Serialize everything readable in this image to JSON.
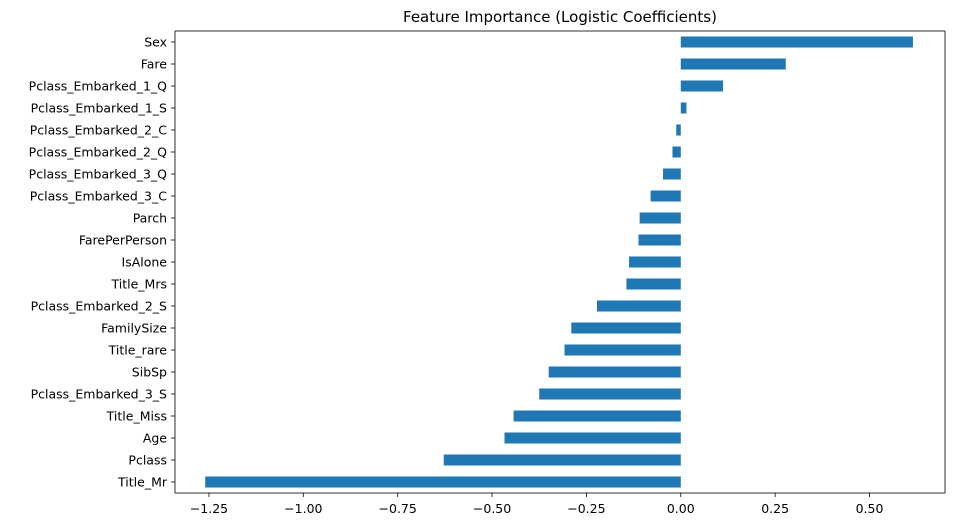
{
  "chart_data": {
    "type": "bar",
    "orientation": "horizontal",
    "title": "Feature Importance (Logistic Coefficients)",
    "xlabel": "",
    "ylabel": "",
    "xlim": [
      -1.34,
      0.7
    ],
    "xticks": [
      -1.25,
      -1.0,
      -0.75,
      -0.5,
      -0.25,
      0.0,
      0.25,
      0.5
    ],
    "xtick_labels": [
      "−1.25",
      "−1.00",
      "−0.75",
      "−0.50",
      "−0.25",
      "0.00",
      "0.25",
      "0.50"
    ],
    "grid": false,
    "bar_color": "#1f77b4",
    "categories": [
      "Sex",
      "Fare",
      "Pclass_Embarked_1_Q",
      "Pclass_Embarked_1_S",
      "Pclass_Embarked_2_C",
      "Pclass_Embarked_2_Q",
      "Pclass_Embarked_3_Q",
      "Pclass_Embarked_3_C",
      "Parch",
      "FarePerPerson",
      "IsAlone",
      "Title_Mrs",
      "Pclass_Embarked_2_S",
      "FamilySize",
      "Title_rare",
      "SibSp",
      "Pclass_Embarked_3_S",
      "Title_Miss",
      "Age",
      "Pclass",
      "Title_Mr"
    ],
    "values": [
      0.615,
      0.278,
      0.112,
      0.015,
      -0.012,
      -0.022,
      -0.047,
      -0.08,
      -0.109,
      -0.112,
      -0.137,
      -0.144,
      -0.222,
      -0.29,
      -0.308,
      -0.35,
      -0.375,
      -0.443,
      -0.467,
      -0.628,
      -1.26
    ]
  }
}
